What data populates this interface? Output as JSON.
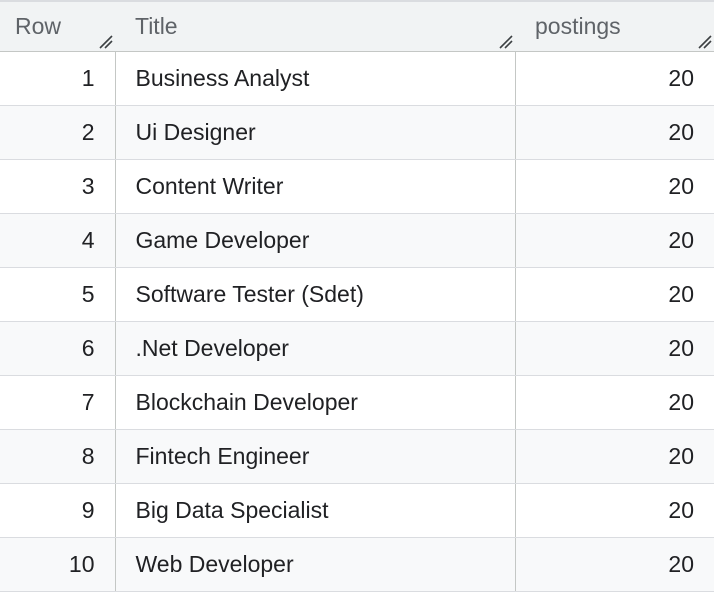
{
  "table": {
    "columns": [
      {
        "label": "Row"
      },
      {
        "label": "Title"
      },
      {
        "label": "postings"
      }
    ],
    "rows": [
      {
        "row": "1",
        "title": "Business Analyst",
        "postings": "20"
      },
      {
        "row": "2",
        "title": "Ui Designer",
        "postings": "20"
      },
      {
        "row": "3",
        "title": "Content Writer",
        "postings": "20"
      },
      {
        "row": "4",
        "title": "Game Developer",
        "postings": "20"
      },
      {
        "row": "5",
        "title": "Software Tester (Sdet)",
        "postings": "20"
      },
      {
        "row": "6",
        "title": ".Net Developer",
        "postings": "20"
      },
      {
        "row": "7",
        "title": "Blockchain Developer",
        "postings": "20"
      },
      {
        "row": "8",
        "title": "Fintech Engineer",
        "postings": "20"
      },
      {
        "row": "9",
        "title": "Big Data Specialist",
        "postings": "20"
      },
      {
        "row": "10",
        "title": "Web Developer",
        "postings": "20"
      }
    ]
  },
  "icons": {
    "column_resize": "column-resize-icon"
  },
  "colors": {
    "header_bg": "#f1f3f4",
    "stripe_bg": "#f8f9fa",
    "header_text": "#5f6368",
    "cell_text": "#202124",
    "border": "#dadce0"
  }
}
